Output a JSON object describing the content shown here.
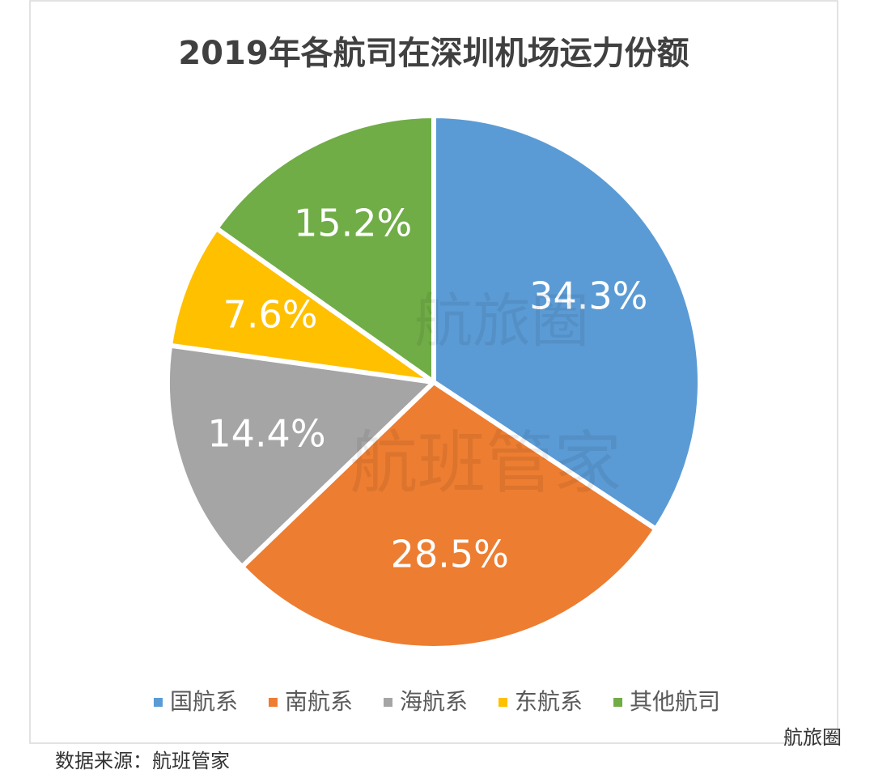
{
  "chart_data": {
    "type": "pie",
    "title": "2019年各航司在深圳机场运力份额",
    "categories": [
      "国航系",
      "南航系",
      "海航系",
      "东航系",
      "其他航司"
    ],
    "values": [
      34.3,
      28.5,
      14.4,
      7.6,
      15.2
    ],
    "value_labels": [
      "34.3%",
      "28.5%",
      "14.4%",
      "7.6%",
      "15.2%"
    ],
    "colors": [
      "#5b9bd5",
      "#ed7d31",
      "#a5a5a5",
      "#ffc000",
      "#70ad47"
    ],
    "legend": "bottom",
    "watermarks": [
      "航旅圈",
      "航班管家"
    ],
    "source": "数据来源：航班管家",
    "brand": "航旅圈"
  }
}
